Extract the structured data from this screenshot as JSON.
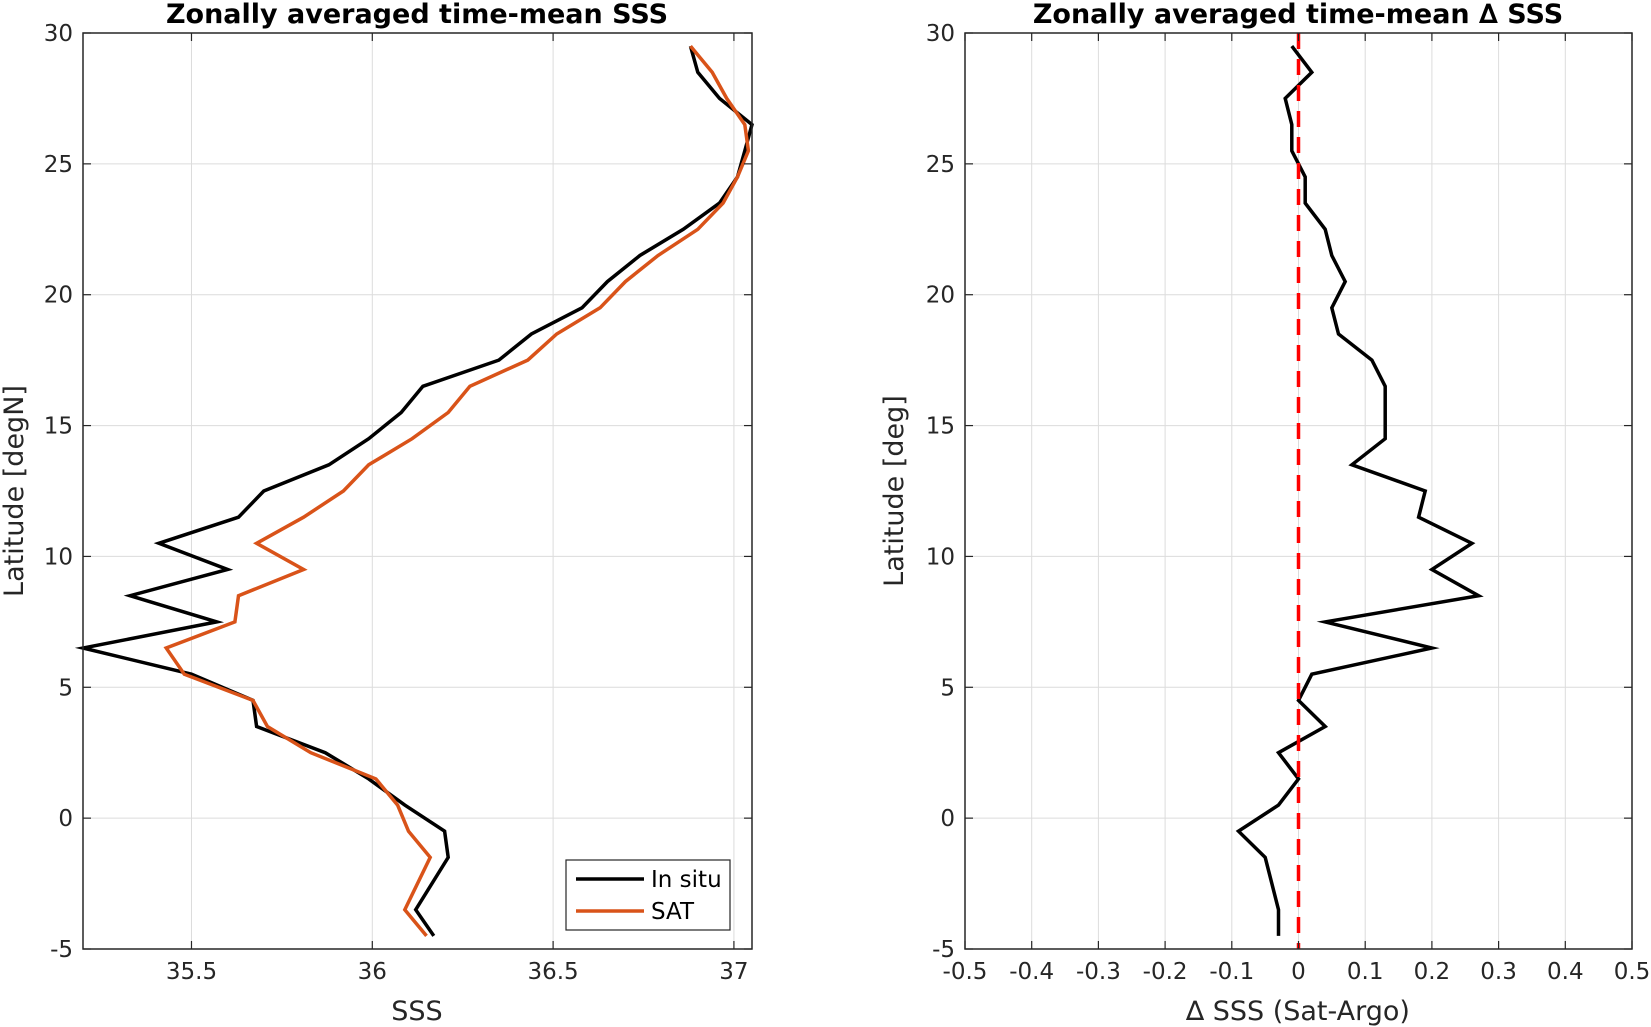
{
  "chart_data": [
    {
      "type": "line",
      "title": "Zonally averaged time-mean SSS",
      "xlabel": "SSS",
      "ylabel": "Latitude [degN]",
      "xlim": [
        35.2,
        37.05
      ],
      "ylim": [
        -5,
        30
      ],
      "xticks": [
        35.5,
        36,
        36.5,
        37
      ],
      "xtick_labels": [
        "35.5",
        "36",
        "36.5",
        "37"
      ],
      "yticks": [
        -5,
        0,
        5,
        10,
        15,
        20,
        25,
        30
      ],
      "ytick_labels": [
        "-5",
        "0",
        "5",
        "10",
        "15",
        "20",
        "25",
        "30"
      ],
      "grid": true,
      "legend_position": "bottom-right",
      "series": [
        {
          "name": "In situ",
          "color": "#000000",
          "points": [
            [
              36.17,
              -4.5
            ],
            [
              36.12,
              -3.5
            ],
            [
              36.21,
              -1.5
            ],
            [
              36.2,
              -0.5
            ],
            [
              36.09,
              0.5
            ],
            [
              35.99,
              1.5
            ],
            [
              35.87,
              2.5
            ],
            [
              35.68,
              3.5
            ],
            [
              35.67,
              4.5
            ],
            [
              35.5,
              5.5
            ],
            [
              35.2,
              6.5
            ],
            [
              35.57,
              7.5
            ],
            [
              35.33,
              8.5
            ],
            [
              35.6,
              9.5
            ],
            [
              35.41,
              10.5
            ],
            [
              35.63,
              11.5
            ],
            [
              35.7,
              12.5
            ],
            [
              35.88,
              13.5
            ],
            [
              35.99,
              14.5
            ],
            [
              36.08,
              15.5
            ],
            [
              36.14,
              16.5
            ],
            [
              36.35,
              17.5
            ],
            [
              36.44,
              18.5
            ],
            [
              36.58,
              19.5
            ],
            [
              36.65,
              20.5
            ],
            [
              36.74,
              21.5
            ],
            [
              36.86,
              22.5
            ],
            [
              36.96,
              23.5
            ],
            [
              37.01,
              24.5
            ],
            [
              37.03,
              25.5
            ],
            [
              37.05,
              26.5
            ],
            [
              36.96,
              27.5
            ],
            [
              36.9,
              28.5
            ],
            [
              36.88,
              29.5
            ]
          ]
        },
        {
          "name": "SAT",
          "color": "#D95319",
          "points": [
            [
              36.15,
              -4.5
            ],
            [
              36.09,
              -3.5
            ],
            [
              36.16,
              -1.5
            ],
            [
              36.1,
              -0.5
            ],
            [
              36.07,
              0.5
            ],
            [
              36.01,
              1.5
            ],
            [
              35.83,
              2.5
            ],
            [
              35.71,
              3.5
            ],
            [
              35.67,
              4.5
            ],
            [
              35.48,
              5.5
            ],
            [
              35.43,
              6.5
            ],
            [
              35.62,
              7.5
            ],
            [
              35.63,
              8.5
            ],
            [
              35.81,
              9.5
            ],
            [
              35.68,
              10.5
            ],
            [
              35.81,
              11.5
            ],
            [
              35.92,
              12.5
            ],
            [
              35.99,
              13.5
            ],
            [
              36.11,
              14.5
            ],
            [
              36.21,
              15.5
            ],
            [
              36.27,
              16.5
            ],
            [
              36.43,
              17.5
            ],
            [
              36.51,
              18.5
            ],
            [
              36.63,
              19.5
            ],
            [
              36.7,
              20.5
            ],
            [
              36.79,
              21.5
            ],
            [
              36.9,
              22.5
            ],
            [
              36.97,
              23.5
            ],
            [
              37.01,
              24.5
            ],
            [
              37.04,
              25.5
            ],
            [
              37.03,
              26.5
            ],
            [
              36.98,
              27.5
            ],
            [
              36.94,
              28.5
            ],
            [
              36.88,
              29.5
            ]
          ]
        }
      ],
      "legend": [
        "In situ",
        "SAT"
      ]
    },
    {
      "type": "line",
      "title": "Zonally averaged time-mean ∆ SSS",
      "xlabel": "∆ SSS (Sat-Argo)",
      "ylabel": "Latitude [deg]",
      "xlim": [
        -0.5,
        0.5
      ],
      "ylim": [
        -5,
        30
      ],
      "xticks": [
        -0.5,
        -0.4,
        -0.3,
        -0.2,
        -0.1,
        0,
        0.1,
        0.2,
        0.3,
        0.4,
        0.5
      ],
      "xtick_labels": [
        "-0.5",
        "-0.4",
        "-0.3",
        "-0.2",
        "-0.1",
        "0",
        "0.1",
        "0.2",
        "0.3",
        "0.4",
        "0.5"
      ],
      "yticks": [
        -5,
        0,
        5,
        10,
        15,
        20,
        25,
        30
      ],
      "ytick_labels": [
        "-5",
        "0",
        "5",
        "10",
        "15",
        "20",
        "25",
        "30"
      ],
      "grid": true,
      "series": [
        {
          "name": "",
          "color": "#000000",
          "points": [
            [
              -0.03,
              -4.5
            ],
            [
              -0.03,
              -3.5
            ],
            [
              -0.05,
              -1.5
            ],
            [
              -0.09,
              -0.5
            ],
            [
              -0.03,
              0.5
            ],
            [
              0.0,
              1.5
            ],
            [
              -0.03,
              2.5
            ],
            [
              0.04,
              3.5
            ],
            [
              0.0,
              4.5
            ],
            [
              0.02,
              5.5
            ],
            [
              0.2,
              6.5
            ],
            [
              0.04,
              7.5
            ],
            [
              0.27,
              8.5
            ],
            [
              0.2,
              9.5
            ],
            [
              0.26,
              10.5
            ],
            [
              0.18,
              11.5
            ],
            [
              0.19,
              12.5
            ],
            [
              0.08,
              13.5
            ],
            [
              0.13,
              14.5
            ],
            [
              0.13,
              15.5
            ],
            [
              0.13,
              16.5
            ],
            [
              0.11,
              17.5
            ],
            [
              0.06,
              18.5
            ],
            [
              0.05,
              19.5
            ],
            [
              0.07,
              20.5
            ],
            [
              0.05,
              21.5
            ],
            [
              0.04,
              22.5
            ],
            [
              0.01,
              23.5
            ],
            [
              0.01,
              24.5
            ],
            [
              -0.01,
              25.5
            ],
            [
              -0.01,
              26.5
            ],
            [
              -0.02,
              27.5
            ],
            [
              0.02,
              28.5
            ],
            [
              -0.01,
              29.5
            ]
          ]
        }
      ],
      "reference_line": {
        "x": 0,
        "color": "#FF0000",
        "style": "dashed"
      }
    }
  ]
}
